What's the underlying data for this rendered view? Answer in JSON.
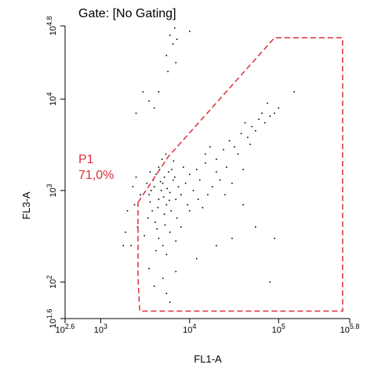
{
  "chart_data": {
    "type": "scatter",
    "title": "Gate: [No Gating]",
    "x_label": "FL1-A",
    "y_label": "FL3-A",
    "log_scale": true,
    "point_color": "#000000",
    "xlim": [
      398.1,
      631000
    ],
    "ylim": [
      39.8,
      63100
    ],
    "xticks": [
      {
        "value": 398.1,
        "label": {
          "base": "10",
          "exp": "2.6"
        }
      },
      {
        "value": 1000,
        "label": {
          "base": "10",
          "exp": "3"
        }
      },
      {
        "value": 10000,
        "label": {
          "base": "10",
          "exp": "4"
        }
      },
      {
        "value": 100000,
        "label": {
          "base": "10",
          "exp": "5"
        }
      },
      {
        "value": 631000,
        "label": {
          "base": "10",
          "exp": "5.8"
        }
      }
    ],
    "yticks": [
      {
        "value": 39.8,
        "label": {
          "base": "10",
          "exp": "1.6"
        }
      },
      {
        "value": 100,
        "label": {
          "base": "10",
          "exp": "2"
        }
      },
      {
        "value": 1000,
        "label": {
          "base": "10",
          "exp": "3"
        }
      },
      {
        "value": 10000,
        "label": {
          "base": "10",
          "exp": "4"
        }
      },
      {
        "value": 63100,
        "label": {
          "base": "10",
          "exp": "4.8"
        }
      }
    ],
    "gates": [
      {
        "name": "P1",
        "value_label": "71,0%",
        "value": 71.0,
        "color": "#d9303b",
        "x": [
          2630,
          5750,
          90000,
          525000,
          525000,
          2750,
          2630
        ],
        "y": [
          741,
          2340,
          46800,
          46800,
          48,
          48,
          110
        ]
      }
    ],
    "x": [
      3500,
      4000,
      4500,
      5000,
      5500,
      6000,
      3800,
      4200,
      4800,
      5200,
      6500,
      7000,
      3300,
      3600,
      4100,
      4600,
      5800,
      6200,
      7500,
      8000,
      3900,
      4400,
      5100,
      5600,
      6800,
      4300,
      5300,
      3700,
      4700,
      5900,
      9000,
      10000,
      12000,
      8500,
      11000,
      13000,
      15000,
      9500,
      7200,
      6600,
      4900,
      5400,
      3400,
      2600,
      2400,
      2200,
      2500,
      2800,
      3100,
      4500,
      5000,
      6000,
      5500,
      4200,
      7000,
      8000,
      10000,
      12500,
      18000,
      20000,
      16000,
      14000,
      22000,
      25000,
      30000,
      35000,
      40000,
      24000,
      28000,
      32000,
      38000,
      45000,
      50000,
      55000,
      60000,
      42000,
      48000,
      65000,
      70000,
      80000,
      90000,
      100000,
      75000,
      20000,
      26000,
      17000,
      15000,
      40000,
      55000,
      90000,
      7000,
      5000,
      6000,
      5500,
      4000,
      3500,
      12000,
      20000,
      30000,
      80000,
      4500,
      5200,
      6300,
      3600,
      2000,
      1900,
      2300,
      1800,
      6000,
      6500,
      5500,
      7000,
      6800,
      7200,
      5700,
      3000,
      4000,
      2500,
      3500,
      4500,
      150000,
      10000
    ],
    "y": [
      900,
      1100,
      800,
      1200,
      700,
      950,
      600,
      1500,
      1000,
      550,
      1300,
      800,
      1200,
      750,
      450,
      1700,
      1600,
      600,
      1100,
      900,
      1300,
      650,
      850,
      1050,
      1400,
      380,
      420,
      1000,
      1250,
      780,
      1200,
      1500,
      1700,
      1800,
      1000,
      1300,
      2000,
      700,
      500,
      2100,
      2200,
      2500,
      500,
      400,
      700,
      250,
      1400,
      900,
      320,
      300,
      250,
      350,
      200,
      220,
      280,
      400,
      600,
      800,
      1100,
      1600,
      900,
      650,
      1300,
      900,
      1200,
      2500,
      1700,
      2800,
      3500,
      3000,
      4200,
      3800,
      5000,
      4500,
      6000,
      5500,
      3200,
      7000,
      5500,
      6500,
      7000,
      8000,
      9000,
      2200,
      1800,
      3000,
      2500,
      700,
      400,
      300,
      130,
      110,
      60,
      75,
      90,
      140,
      180,
      250,
      300,
      100,
      1800,
      1400,
      1700,
      1600,
      600,
      350,
      1100,
      250,
      50000,
      40000,
      30000,
      25000,
      60000,
      45000,
      20000,
      12000,
      8000,
      7000,
      9500,
      12000,
      12000,
      55000
    ]
  }
}
